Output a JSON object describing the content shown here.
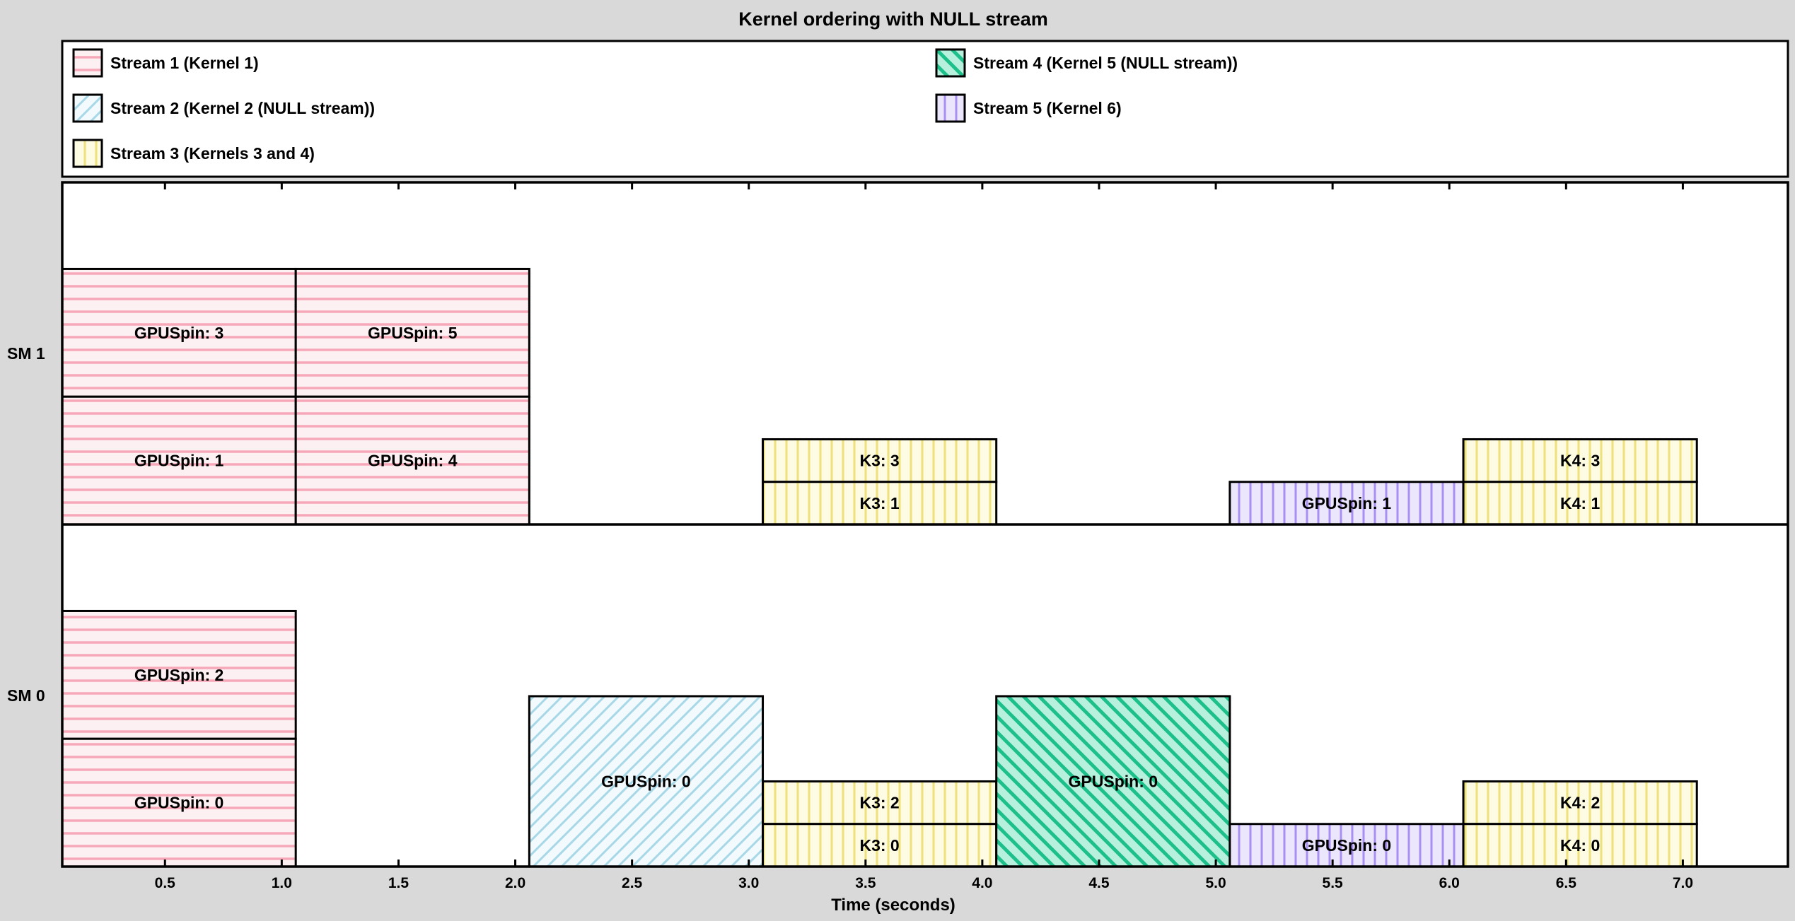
{
  "chart_data": {
    "type": "timeline",
    "title": "Kernel ordering with NULL stream",
    "xlabel": "Time (seconds)",
    "ylabel": "",
    "xlim": [
      0.06,
      7.45
    ],
    "xticks": [
      0.5,
      1.0,
      1.5,
      2.0,
      2.5,
      3.0,
      3.5,
      4.0,
      4.5,
      5.0,
      5.5,
      6.0,
      6.5,
      7.0
    ],
    "xtick_labels": [
      "0.5",
      "1.0",
      "1.5",
      "2.0",
      "2.5",
      "3.0",
      "3.5",
      "4.0",
      "4.5",
      "5.0",
      "5.5",
      "6.0",
      "6.5",
      "7.0"
    ],
    "rows": [
      {
        "id": "sm1",
        "label": "SM 1"
      },
      {
        "id": "sm0",
        "label": "SM 0"
      }
    ],
    "legend_position": "top",
    "streams": [
      {
        "id": "s1",
        "name": "Stream 1 (Kernel 1)",
        "pattern": "horizontal",
        "color": "#f7a8b8",
        "fill": "#fdf0f3"
      },
      {
        "id": "s2",
        "name": "Stream 2 (Kernel 2 (NULL stream))",
        "pattern": "diag-right",
        "color": "#a8d8e8",
        "fill": "#f2fafd"
      },
      {
        "id": "s3",
        "name": "Stream 3 (Kernels 3 and 4)",
        "pattern": "vertical",
        "color": "#ede27a",
        "fill": "#fdfbe2"
      },
      {
        "id": "s4",
        "name": "Stream 4 (Kernel 5 (NULL stream))",
        "pattern": "diag-left",
        "color": "#1dbf8a",
        "fill": "#b7f0dd"
      },
      {
        "id": "s5",
        "name": "Stream 5 (Kernel 6)",
        "pattern": "vertical",
        "color": "#a98ff0",
        "fill": "#ece6fd"
      }
    ],
    "blocks": [
      {
        "row": "sm1",
        "stream": "s1",
        "label": "GPUSpin: 3",
        "start": 0.06,
        "end": 1.06,
        "level": 1
      },
      {
        "row": "sm1",
        "stream": "s1",
        "label": "GPUSpin: 5",
        "start": 1.06,
        "end": 2.06,
        "level": 1
      },
      {
        "row": "sm1",
        "stream": "s1",
        "label": "GPUSpin: 1",
        "start": 0.06,
        "end": 1.06,
        "level": 0
      },
      {
        "row": "sm1",
        "stream": "s1",
        "label": "GPUSpin: 4",
        "start": 1.06,
        "end": 2.06,
        "level": 0
      },
      {
        "row": "sm1",
        "stream": "s3",
        "label": "K3: 3",
        "start": 3.06,
        "end": 4.06,
        "level": 1,
        "small": true
      },
      {
        "row": "sm1",
        "stream": "s3",
        "label": "K3: 1",
        "start": 3.06,
        "end": 4.06,
        "level": 0,
        "small": true
      },
      {
        "row": "sm1",
        "stream": "s5",
        "label": "GPUSpin: 1",
        "start": 5.06,
        "end": 6.06,
        "level": 0,
        "small": true
      },
      {
        "row": "sm1",
        "stream": "s3",
        "label": "K4: 3",
        "start": 6.06,
        "end": 7.06,
        "level": 1,
        "small": true
      },
      {
        "row": "sm1",
        "stream": "s3",
        "label": "K4: 1",
        "start": 6.06,
        "end": 7.06,
        "level": 0,
        "small": true
      },
      {
        "row": "sm0",
        "stream": "s1",
        "label": "GPUSpin: 2",
        "start": 0.06,
        "end": 1.06,
        "level": 1
      },
      {
        "row": "sm0",
        "stream": "s1",
        "label": "GPUSpin: 0",
        "start": 0.06,
        "end": 1.06,
        "level": 0
      },
      {
        "row": "sm0",
        "stream": "s2",
        "label": "GPUSpin: 0",
        "start": 2.06,
        "end": 3.06,
        "level": 0,
        "full": true
      },
      {
        "row": "sm0",
        "stream": "s3",
        "label": "K3: 2",
        "start": 3.06,
        "end": 4.06,
        "level": 1,
        "small": true
      },
      {
        "row": "sm0",
        "stream": "s3",
        "label": "K3: 0",
        "start": 3.06,
        "end": 4.06,
        "level": 0,
        "small": true
      },
      {
        "row": "sm0",
        "stream": "s4",
        "label": "GPUSpin: 0",
        "start": 4.06,
        "end": 5.06,
        "level": 0,
        "full": true
      },
      {
        "row": "sm0",
        "stream": "s5",
        "label": "GPUSpin: 0",
        "start": 5.06,
        "end": 6.06,
        "level": 0,
        "small": true
      },
      {
        "row": "sm0",
        "stream": "s3",
        "label": "K4: 2",
        "start": 6.06,
        "end": 7.06,
        "level": 1,
        "small": true
      },
      {
        "row": "sm0",
        "stream": "s3",
        "label": "K4: 0",
        "start": 6.06,
        "end": 7.06,
        "level": 0,
        "small": true
      }
    ]
  }
}
